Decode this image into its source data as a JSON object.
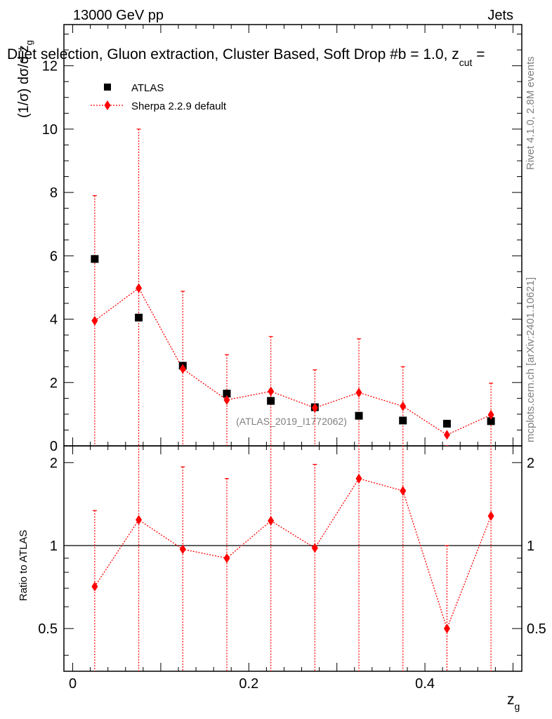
{
  "header": {
    "left": "13000 GeV pp",
    "right": "Jets",
    "subtitle": "Dijet selection, Gluon extraction, Cluster Based, Soft Drop #b = 1.0, z",
    "subtitle_sub": "cut",
    "subtitle_tail": " ="
  },
  "side_labels": {
    "rivet": "Rivet 4.1.0,  2.8M events",
    "mcplots": "mcplots.cern.ch [arXiv:2401.10621]"
  },
  "analysis_id": "(ATLAS_2019_I1772062)",
  "legend": [
    {
      "label": "ATLAS",
      "color": "#000000",
      "marker": "square"
    },
    {
      "label": "Sherpa 2.2.9 default",
      "color": "#ff0000",
      "marker": "diamond"
    }
  ],
  "chart_data": [
    {
      "type": "scatter",
      "panel": "main",
      "ylabel": "(1/σ) dσ/d z",
      "ylabel_sub": "g",
      "xlim": [
        -0.01,
        0.51
      ],
      "ylim": [
        0,
        13.3
      ],
      "yticks": [
        0,
        2,
        4,
        6,
        8,
        10,
        12
      ],
      "x": [
        0.025,
        0.075,
        0.125,
        0.175,
        0.225,
        0.275,
        0.325,
        0.375,
        0.425,
        0.475
      ],
      "series": [
        {
          "name": "ATLAS",
          "color": "#000000",
          "values": [
            5.9,
            4.05,
            2.53,
            1.65,
            1.42,
            1.22,
            0.95,
            0.8,
            0.7,
            0.78
          ]
        },
        {
          "name": "Sherpa 2.2.9 default",
          "color": "#ff0000",
          "values": [
            3.95,
            4.98,
            2.43,
            1.45,
            1.72,
            1.2,
            1.68,
            1.25,
            0.35,
            0.98
          ],
          "err_up": [
            7.9,
            10.0,
            4.88,
            2.88,
            3.45,
            2.4,
            3.38,
            2.5,
            0.0,
            1.98
          ],
          "err_down": [
            0,
            0,
            0,
            0,
            0,
            0,
            0,
            0,
            0,
            0
          ]
        }
      ]
    },
    {
      "type": "line",
      "panel": "ratio",
      "ylabel": "Ratio to ATLAS",
      "xlabel": "z",
      "xlabel_sub": "g",
      "xlim": [
        -0.01,
        0.51
      ],
      "ylim": [
        0.35,
        2.3
      ],
      "yticks": [
        0.5,
        1,
        2
      ],
      "xticks": [
        0,
        0.2,
        0.4
      ],
      "reference": 1.0,
      "x": [
        0.025,
        0.075,
        0.125,
        0.175,
        0.225,
        0.275,
        0.325,
        0.375,
        0.425,
        0.475
      ],
      "series": [
        {
          "name": "Sherpa 2.2.9 default",
          "color": "#ff0000",
          "values": [
            0.71,
            1.24,
            0.97,
            0.9,
            1.23,
            0.98,
            1.75,
            1.58,
            0.5,
            1.28
          ],
          "err_up": [
            1.34,
            2.47,
            1.93,
            1.75,
            2.43,
            1.97,
            3.56,
            3.12,
            1.0,
            2.54
          ],
          "err_down": [
            0,
            0,
            0,
            0,
            0,
            0,
            0,
            0,
            0,
            0
          ]
        }
      ]
    }
  ]
}
